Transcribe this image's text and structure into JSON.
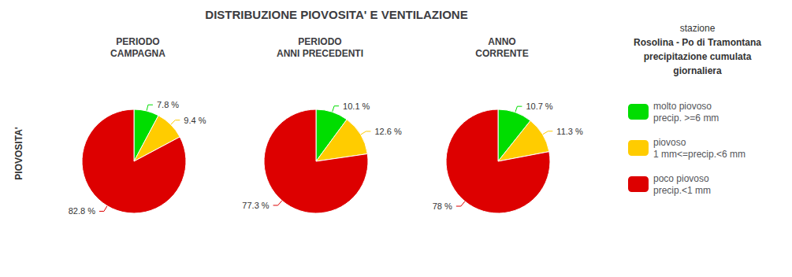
{
  "title": "DISTRIBUZIONE PIOVOSITA' E VENTILAZIONE",
  "ylabel": "PIOVOSITA'",
  "annotations": [
    "stazione",
    "Rosolina - Po di Tramontana",
    "precipitazione cumulata",
    "giornaliera"
  ],
  "legend": "right",
  "chart_data": [
    {
      "type": "pie",
      "title": "PERIODO\nCAMPAGNA",
      "categories": [
        "molto piovoso\nprecip. >=6 mm",
        "piovoso\n1 mm<=precip.<6 mm",
        "poco piovoso\nprecip.<1 mm"
      ],
      "values": [
        7.8,
        9.4,
        82.8
      ],
      "value_labels": [
        "7.8 %",
        "9.4 %",
        "82.8 %"
      ],
      "colors": [
        "#00dd00",
        "#ffcc00",
        "#dd0000"
      ],
      "data_labels": true
    },
    {
      "type": "pie",
      "title": "PERIODO\nANNI PRECEDENTI",
      "categories": [
        "molto piovoso\nprecip. >=6 mm",
        "piovoso\n1 mm<=precip.<6 mm",
        "poco piovoso\nprecip.<1 mm"
      ],
      "values": [
        10.1,
        12.6,
        77.3
      ],
      "value_labels": [
        "10.1 %",
        "12.6 %",
        "77.3 %"
      ],
      "colors": [
        "#00dd00",
        "#ffcc00",
        "#dd0000"
      ],
      "data_labels": true
    },
    {
      "type": "pie",
      "title": "ANNO\nCORRENTE",
      "categories": [
        "molto piovoso\nprecip. >=6 mm",
        "piovoso\n1 mm<=precip.<6 mm",
        "poco piovoso\nprecip.<1 mm"
      ],
      "values": [
        10.7,
        11.3,
        78.0
      ],
      "value_labels": [
        "10.7 %",
        "11.3 %",
        "78 %"
      ],
      "colors": [
        "#00dd00",
        "#ffcc00",
        "#dd0000"
      ],
      "data_labels": true
    }
  ]
}
